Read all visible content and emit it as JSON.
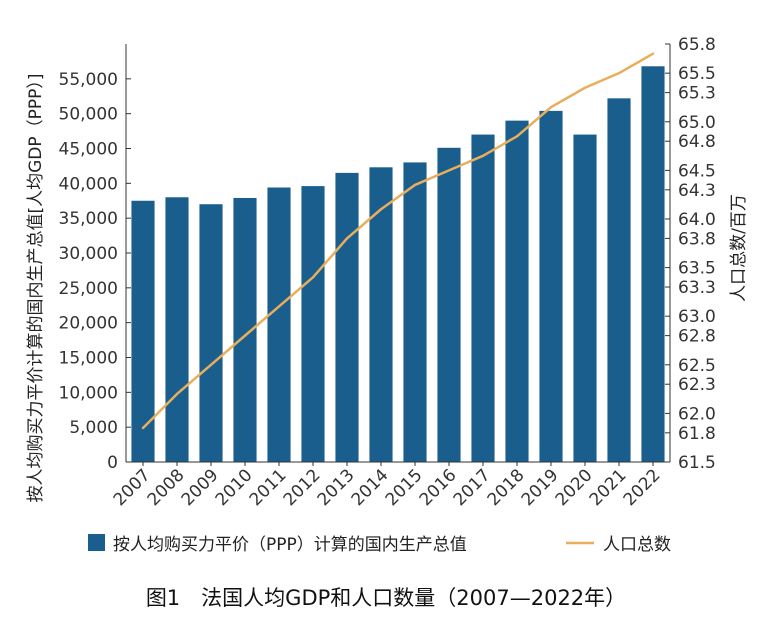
{
  "chart_data": {
    "type": "bar",
    "caption": "图1　法国人均GDP和人口数量（2007—2022年）",
    "categories": [
      "2007",
      "2008",
      "2009",
      "2010",
      "2011",
      "2012",
      "2013",
      "2014",
      "2015",
      "2016",
      "2017",
      "2018",
      "2019",
      "2020",
      "2021",
      "2022"
    ],
    "series": [
      {
        "name": "按人均购买力平价（PPP）计算的国内生产总值",
        "type": "bar",
        "axis": "left",
        "color": "#1a5e8e",
        "values": [
          37500,
          38000,
          37000,
          37900,
          39400,
          39600,
          41500,
          42300,
          43000,
          45100,
          47000,
          49000,
          50400,
          47000,
          52200,
          56800
        ]
      },
      {
        "name": "人口总数",
        "type": "line",
        "axis": "right",
        "color": "#e8ae5c",
        "values": [
          61.85,
          62.2,
          62.5,
          62.8,
          63.1,
          63.4,
          63.8,
          64.1,
          64.35,
          64.5,
          64.65,
          64.85,
          65.15,
          65.35,
          65.5,
          65.7
        ]
      }
    ],
    "ylabel": "按人均购买力平价计算的国内生产总值[人均GDP（PPP）]",
    "y2label": "人口总数/百万",
    "ylim": [
      0,
      60000
    ],
    "y2lim": [
      61.5,
      65.8
    ],
    "yticks": [
      "0",
      "5,000",
      "10,000",
      "15,000",
      "20,000",
      "25,000",
      "30,000",
      "35,000",
      "40,000",
      "45,000",
      "50,000",
      "55,000"
    ],
    "y2ticks": [
      "61.5",
      "61.8",
      "62.0",
      "62.3",
      "62.5",
      "62.8",
      "63.0",
      "63.3",
      "63.5",
      "63.8",
      "64.0",
      "64.3",
      "64.5",
      "64.8",
      "65.0",
      "65.3",
      "65.5",
      "65.8"
    ],
    "legend_position": "bottom",
    "grid": false
  }
}
